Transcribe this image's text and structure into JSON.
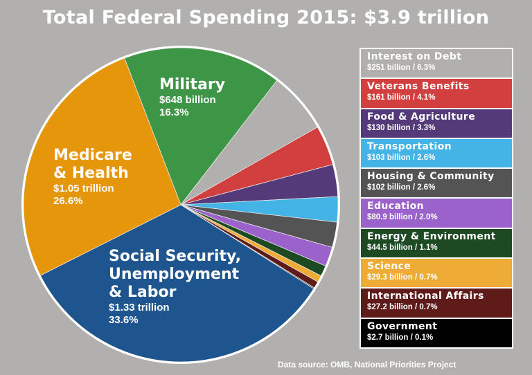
{
  "chart_data": {
    "type": "pie",
    "title": "Total Federal Spending 2015: $3.9 trillion",
    "slices": [
      {
        "name": "Military",
        "amount": "$648 billion",
        "percent": 16.3,
        "percent_label": "16.3%",
        "color": "#3d9546"
      },
      {
        "name": "Interest on Debt",
        "amount": "$251 billion",
        "percent": 6.3,
        "percent_label": "6.3%",
        "color": "#b1b0af"
      },
      {
        "name": "Veterans Benefits",
        "amount": "$161 billion",
        "percent": 4.1,
        "percent_label": "4.1%",
        "color": "#d23f3f"
      },
      {
        "name": "Food & Agriculture",
        "amount": "$130 billion",
        "percent": 3.3,
        "percent_label": "3.3%",
        "color": "#543a78"
      },
      {
        "name": "Transportation",
        "amount": "$103 billion",
        "percent": 2.6,
        "percent_label": "2.6%",
        "color": "#44b4e6"
      },
      {
        "name": "Housing & Community",
        "amount": "$102 billion",
        "percent": 2.6,
        "percent_label": "2.6%",
        "color": "#545454"
      },
      {
        "name": "Education",
        "amount": "$80.9 billion",
        "percent": 2.0,
        "percent_label": "2.0%",
        "color": "#9b62cc"
      },
      {
        "name": "Energy & Environment",
        "amount": "$44.5 billion",
        "percent": 1.1,
        "percent_label": "1.1%",
        "color": "#1d4a22"
      },
      {
        "name": "Science",
        "amount": "$29.3 billion",
        "percent": 0.7,
        "percent_label": "0.7%",
        "color": "#eeac37"
      },
      {
        "name": "International Affairs",
        "amount": "$27.2 billion",
        "percent": 0.7,
        "percent_label": "0.7%",
        "color": "#5f1a1a"
      },
      {
        "name": "Government",
        "amount": "$2.7 billion",
        "percent": 0.1,
        "percent_label": "0.1%",
        "color": "#000000"
      },
      {
        "name": "Social Security, Unemployment & Labor",
        "amount": "$1.33 trillion",
        "percent": 33.6,
        "percent_label": "33.6%",
        "color": "#1f558f"
      },
      {
        "name": "Medicare & Health",
        "amount": "$1.05 trillion",
        "percent": 26.6,
        "percent_label": "26.6%",
        "color": "#e6960b"
      }
    ],
    "pie_labels": {
      "military": {
        "name": "Military",
        "amount": "$648 billion",
        "percent": "16.3%"
      },
      "medicare": {
        "name_line1": "Medicare",
        "name_line2": "& Health",
        "amount": "$1.05 trillion",
        "percent": "26.6%"
      },
      "social_security": {
        "name_line1": "Social Security,",
        "name_line2": "Unemployment",
        "name_line3": "& Labor",
        "amount": "$1.33 trillion",
        "percent": "33.6%"
      }
    },
    "legend_placement": "right",
    "legend": [
      {
        "name": "Interest on Debt",
        "detail": "$251 billion / 6.3%",
        "color": "#b1b0af"
      },
      {
        "name": "Veterans Benefits",
        "detail": "$161 billion / 4.1%",
        "color": "#d23f3f"
      },
      {
        "name": "Food & Agriculture",
        "detail": "$130 billion / 3.3%",
        "color": "#543a78"
      },
      {
        "name": "Transportation",
        "detail": "$103 billion / 2.6%",
        "color": "#44b4e6"
      },
      {
        "name": "Housing & Community",
        "detail": "$102 billion / 2.6%",
        "color": "#545454"
      },
      {
        "name": "Education",
        "detail": "$80.9 billion / 2.0%",
        "color": "#9b62cc"
      },
      {
        "name": "Energy & Environment",
        "detail": "$44.5 billion / 1.1%",
        "color": "#1d4a22"
      },
      {
        "name": "Science",
        "detail": "$29.3 billion / 0.7%",
        "color": "#eeac37"
      },
      {
        "name": "International Affairs",
        "detail": "$27.2 billion / 0.7%",
        "color": "#5f1a1a"
      },
      {
        "name": "Government",
        "detail": "$2.7 billion / 0.1%",
        "color": "#000000"
      }
    ],
    "source": "Data source: OMB, National Priorities Project"
  }
}
